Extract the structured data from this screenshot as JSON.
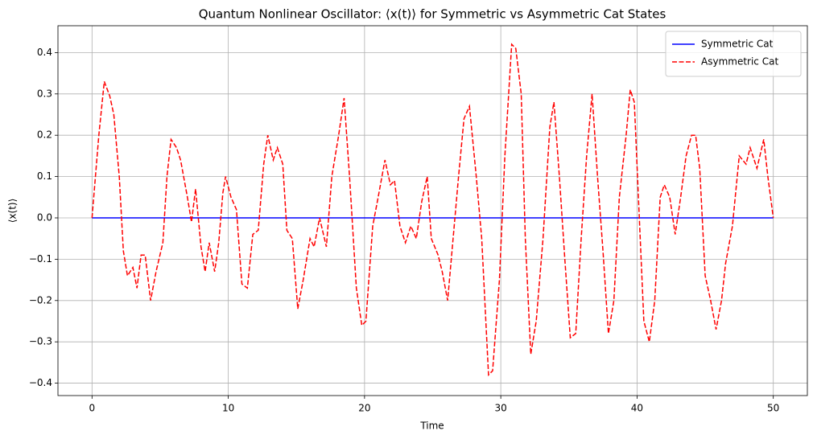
{
  "chart_data": {
    "type": "line",
    "title": "Quantum Nonlinear Oscillator: ⟨x(t)⟩ for Symmetric vs Asymmetric Cat States",
    "x_label": "Time",
    "y_label": "⟨x(t)⟩",
    "xlim": [
      -2.5,
      52.5
    ],
    "ylim": [
      -0.43,
      0.465
    ],
    "xticks": [
      0,
      10,
      20,
      30,
      40,
      50
    ],
    "yticks": [
      {
        "value": -0.4,
        "label": "−0.4"
      },
      {
        "value": -0.3,
        "label": "−0.3"
      },
      {
        "value": -0.2,
        "label": "−0.2"
      },
      {
        "value": -0.1,
        "label": "−0.1"
      },
      {
        "value": 0,
        "label": "0.0"
      },
      0.1,
      0.2,
      0.3,
      0.4
    ],
    "grid": true,
    "legend": "upper-right",
    "series": [
      {
        "name": "Symmetric Cat",
        "color": "#0000ff",
        "dash": "solid",
        "x": [
          0,
          50
        ],
        "values": [
          0,
          0
        ]
      },
      {
        "name": "Asymmetric Cat",
        "color": "#ff0000",
        "dash": "dashed",
        "x": [
          0,
          0.5,
          0.9,
          1.3,
          1.6,
          2,
          2.3,
          2.6,
          3,
          3.3,
          3.6,
          3.9,
          4.3,
          4.7,
          5.2,
          5.5,
          5.8,
          6.2,
          6.5,
          7,
          7.3,
          7.6,
          8,
          8.3,
          8.6,
          9,
          9.3,
          9.6,
          9.8,
          10.2,
          10.6,
          11,
          11.4,
          11.8,
          12.2,
          12.6,
          12.9,
          13.3,
          13.6,
          14,
          14.3,
          14.7,
          15.1,
          15.5,
          16,
          16.3,
          16.7,
          17.2,
          17.6,
          18.1,
          18.5,
          18.9,
          19.4,
          19.8,
          20.1,
          20.6,
          21,
          21.5,
          21.9,
          22.2,
          22.6,
          23,
          23.4,
          23.8,
          24.2,
          24.6,
          24.9,
          25.4,
          25.7,
          26.1,
          26.5,
          26.9,
          27.3,
          27.7,
          28.2,
          28.6,
          29.1,
          29.4,
          29.9,
          30.3,
          30.8,
          31.1,
          31.5,
          31.8,
          32.2,
          32.6,
          33.1,
          33.6,
          33.9,
          34.3,
          34.7,
          35.1,
          35.5,
          35.9,
          36.3,
          36.7,
          37.1,
          37.5,
          37.9,
          38.3,
          38.7,
          39.2,
          39.5,
          39.8,
          40.1,
          40.5,
          40.9,
          41.3,
          41.7,
          42,
          42.4,
          42.8,
          43.2,
          43.6,
          44,
          44.3,
          44.6,
          45,
          45.4,
          45.8,
          46.2,
          46.5,
          47,
          47.5,
          48,
          48.3,
          48.8,
          49.3,
          49.6,
          50
        ],
        "values": [
          0,
          0.2,
          0.33,
          0.295,
          0.25,
          0.1,
          -0.08,
          -0.14,
          -0.12,
          -0.17,
          -0.09,
          -0.09,
          -0.2,
          -0.13,
          -0.06,
          0.1,
          0.19,
          0.17,
          0.14,
          0.05,
          -0.01,
          0.07,
          -0.07,
          -0.13,
          -0.06,
          -0.13,
          -0.06,
          0.06,
          0.1,
          0.05,
          0.02,
          -0.16,
          -0.17,
          -0.04,
          -0.03,
          0.13,
          0.2,
          0.14,
          0.17,
          0.13,
          -0.03,
          -0.05,
          -0.22,
          -0.15,
          -0.05,
          -0.07,
          0,
          -0.07,
          0.1,
          0.2,
          0.29,
          0.1,
          -0.17,
          -0.26,
          -0.25,
          -0.02,
          0.05,
          0.14,
          0.08,
          0.09,
          -0.02,
          -0.06,
          -0.02,
          -0.05,
          0.04,
          0.1,
          -0.05,
          -0.09,
          -0.13,
          -0.2,
          -0.05,
          0.1,
          0.24,
          0.27,
          0.1,
          -0.05,
          -0.38,
          -0.37,
          -0.15,
          0.15,
          0.42,
          0.41,
          0.3,
          -0.05,
          -0.33,
          -0.25,
          -0.05,
          0.22,
          0.28,
          0.1,
          -0.1,
          -0.29,
          -0.28,
          -0.05,
          0.15,
          0.3,
          0.1,
          -0.08,
          -0.28,
          -0.2,
          0.05,
          0.2,
          0.31,
          0.28,
          0.05,
          -0.25,
          -0.3,
          -0.2,
          0.05,
          0.08,
          0.05,
          -0.04,
          0.05,
          0.15,
          0.2,
          0.2,
          0.12,
          -0.14,
          -0.2,
          -0.27,
          -0.2,
          -0.11,
          -0.02,
          0.15,
          0.13,
          0.17,
          0.12,
          0.19,
          0.1,
          0
        ]
      }
    ]
  }
}
